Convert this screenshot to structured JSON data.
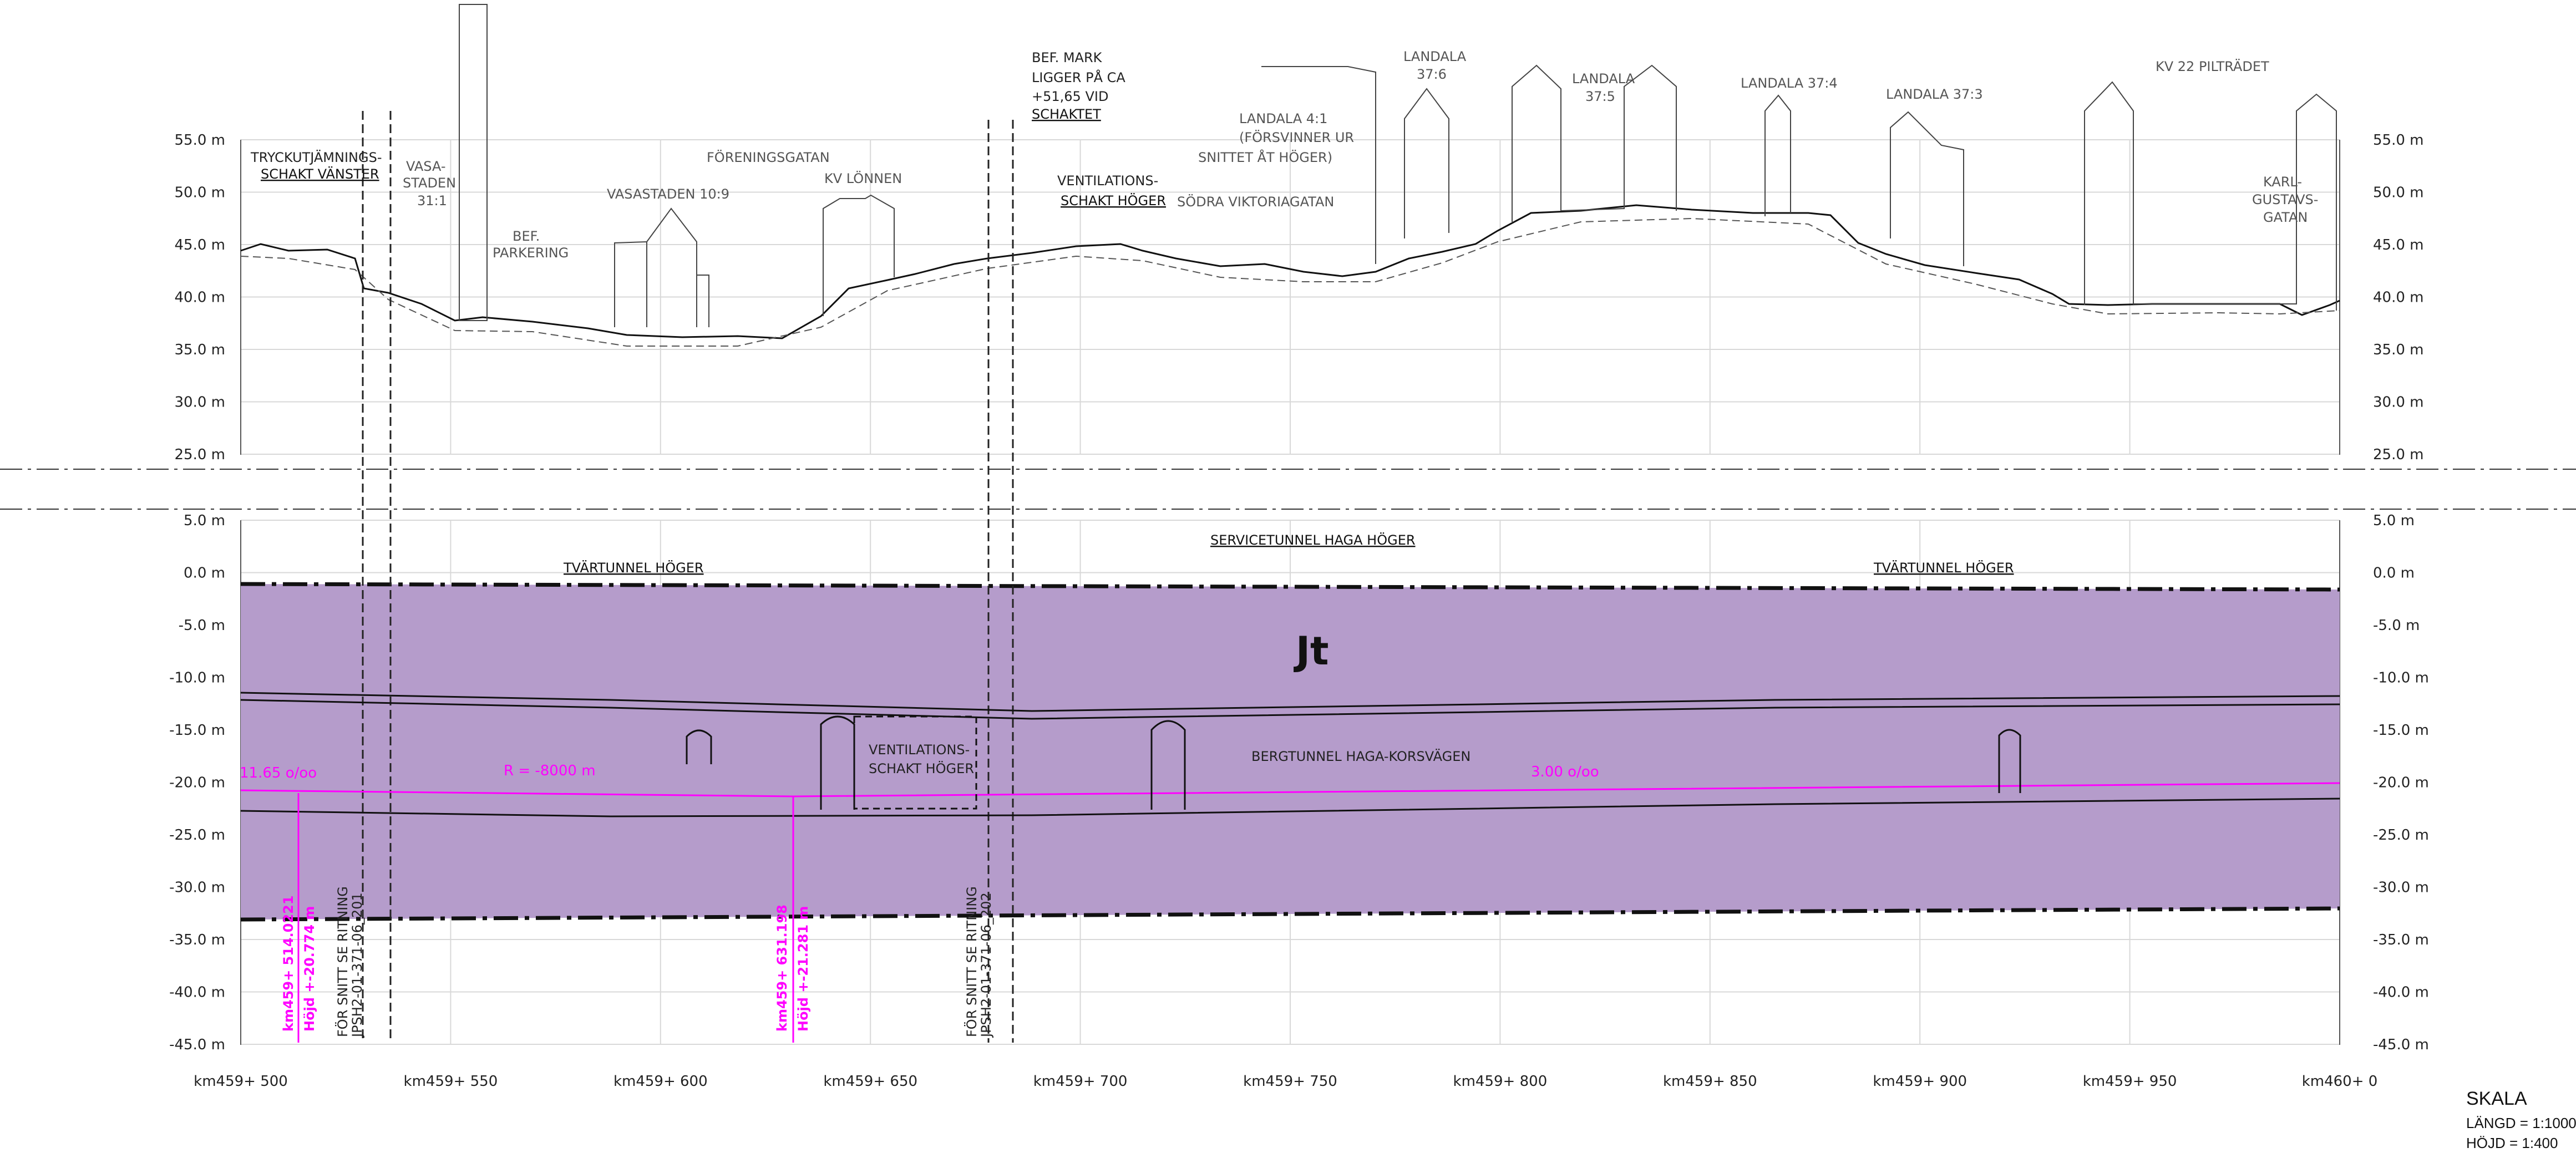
{
  "colors": {
    "rock_fill": "#b59ccb",
    "magenta": "#ff00ff",
    "grid": "#d8d8d8",
    "line": "#222222"
  },
  "upper_levels": [
    "55.0 m",
    "50.0 m",
    "45.0 m",
    "40.0 m",
    "35.0 m",
    "30.0 m",
    "25.0 m"
  ],
  "lower_levels": [
    "5.0 m",
    "0.0 m",
    "-5.0 m",
    "-10.0 m",
    "-15.0 m",
    "-20.0 m",
    "-25.0 m",
    "-30.0 m",
    "-35.0 m",
    "-40.0 m",
    "-45.0 m"
  ],
  "chainage": [
    "km459+ 500",
    "km459+ 550",
    "km459+ 600",
    "km459+ 650",
    "km459+ 700",
    "km459+ 750",
    "km459+ 800",
    "km459+ 850",
    "km459+ 900",
    "km459+ 950",
    "km460+ 0"
  ],
  "upper": {
    "tryck": [
      "TRYCKUTJÄMNINGS-",
      "SCHAKT VÄNSTER"
    ],
    "vasastaden311": [
      "VASA-",
      "STADEN",
      "31:1"
    ],
    "bef_parkering": [
      "BEF.",
      "PARKERING"
    ],
    "vasastaden109": "VASASTADEN 10:9",
    "foreningsgatan": "FÖRENINGSGATAN",
    "kv_lonnen": "KV LÖNNEN",
    "bef_mark": [
      "BEF. MARK",
      "LIGGER PÅ CA",
      "+51,65 VID",
      "SCHAKTET"
    ],
    "vent_hoger": [
      "VENTILATIONS-",
      "SCHAKT HÖGER"
    ],
    "landala41": [
      "LANDALA 4:1",
      "(FÖRSVINNER UR",
      "SNITTET ÅT HÖGER)"
    ],
    "sodra_viktoria": "SÖDRA VIKTORIAGATAN",
    "landala376": [
      "LANDALA",
      "37:6"
    ],
    "landala375": [
      "LANDALA",
      "37:5"
    ],
    "landala374": "LANDALA 37:4",
    "landala373": "LANDALA 37:3",
    "kv22": "KV 22 PILTRÄDET",
    "karl_gustavs": [
      "KARL-",
      "GUSTAVS-",
      "GATAN"
    ]
  },
  "lower": {
    "tvar_left": "TVÄRTUNNEL HÖGER",
    "service": "SERVICETUNNEL HAGA HÖGER",
    "tvar_right": "TVÄRTUNNEL HÖGER",
    "jt": "Jt",
    "vent_hoger": [
      "VENTILATIONS-",
      "SCHAKT HÖGER"
    ],
    "bergtunnel": "BERGTUNNEL HAGA-KORSVÄGEN",
    "grade_left": "11.65 o/oo",
    "radius": "R = -8000 m",
    "grade_right": "3.00 o/oo",
    "km1": "km459+ 514.0221",
    "hojd1": "Höjd +-20.774 m",
    "km2": "km459+ 631.198",
    "hojd2": "Höjd +-21.281 m",
    "ritning1": [
      "FÖR SNITT SE RITNING",
      "JPSH2-01-371-06_201"
    ],
    "ritning2": [
      "FÖR SNITT SE RITNING",
      "JPSH2-01-371-06_202"
    ]
  },
  "skala": {
    "title": "SKALA",
    "langd": "LÄNGD = 1:1000",
    "hojd": "HÖJD = 1:400"
  }
}
